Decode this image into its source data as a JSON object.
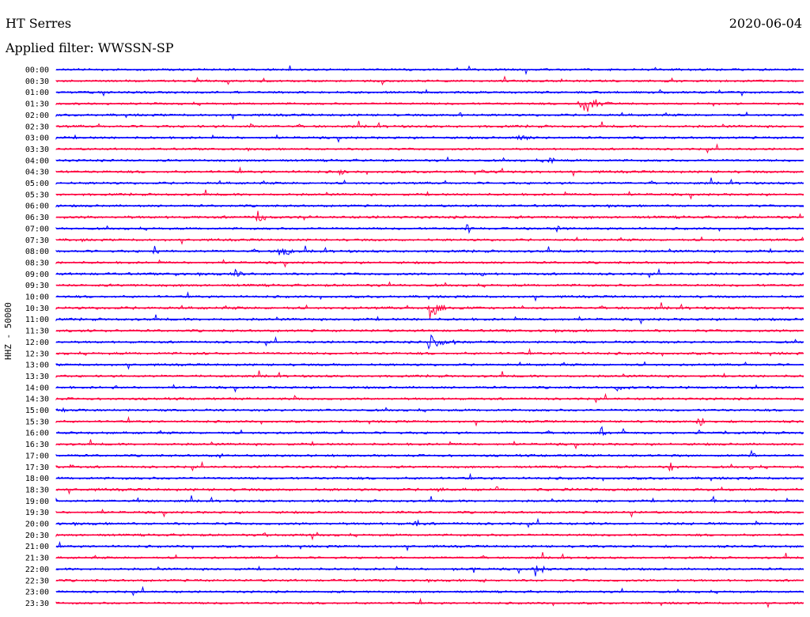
{
  "header": {
    "station": "HT Serres",
    "filter": "Applied filter: WWSSN-SP",
    "date": "2020-06-04"
  },
  "chart_data": {
    "type": "line",
    "title": "HT Serres",
    "subtitle": "Applied filter: WWSSN-SP",
    "ylabel": "HHZ - 50000",
    "xlabel": "",
    "grid": false,
    "legend": "none",
    "colors": [
      "#0000ff",
      "#ff0040"
    ],
    "rows": [
      {
        "label": "00:00",
        "color": "#0000ff",
        "activity": 0.15,
        "events": []
      },
      {
        "label": "00:30",
        "color": "#ff0040",
        "activity": 0.15,
        "events": []
      },
      {
        "label": "01:00",
        "color": "#0000ff",
        "activity": 0.15,
        "events": []
      },
      {
        "label": "01:30",
        "color": "#ff0040",
        "activity": 0.15,
        "events": [
          {
            "pos": 0.7,
            "amp": 18,
            "dur": 0.07
          }
        ]
      },
      {
        "label": "02:00",
        "color": "#0000ff",
        "activity": 0.2,
        "events": [
          {
            "pos": 0.54,
            "amp": 5,
            "dur": 0.02
          }
        ]
      },
      {
        "label": "02:30",
        "color": "#ff0040",
        "activity": 0.25,
        "events": [
          {
            "pos": 0.26,
            "amp": 4,
            "dur": 0.02
          }
        ]
      },
      {
        "label": "03:00",
        "color": "#0000ff",
        "activity": 0.2,
        "events": [
          {
            "pos": 0.62,
            "amp": 10,
            "dur": 0.03
          }
        ]
      },
      {
        "label": "03:30",
        "color": "#ff0040",
        "activity": 0.15,
        "events": []
      },
      {
        "label": "04:00",
        "color": "#0000ff",
        "activity": 0.2,
        "events": [
          {
            "pos": 0.66,
            "amp": 6,
            "dur": 0.02
          }
        ]
      },
      {
        "label": "04:30",
        "color": "#ff0040",
        "activity": 0.25,
        "events": [
          {
            "pos": 0.38,
            "amp": 5,
            "dur": 0.02
          },
          {
            "pos": 0.57,
            "amp": 4,
            "dur": 0.03
          }
        ]
      },
      {
        "label": "05:00",
        "color": "#0000ff",
        "activity": 0.2,
        "events": []
      },
      {
        "label": "05:30",
        "color": "#ff0040",
        "activity": 0.2,
        "events": []
      },
      {
        "label": "06:00",
        "color": "#0000ff",
        "activity": 0.2,
        "events": []
      },
      {
        "label": "06:30",
        "color": "#ff0040",
        "activity": 0.3,
        "events": [
          {
            "pos": 0.27,
            "amp": 12,
            "dur": 0.03
          }
        ]
      },
      {
        "label": "07:00",
        "color": "#0000ff",
        "activity": 0.2,
        "events": [
          {
            "pos": 0.55,
            "amp": 14,
            "dur": 0.02
          },
          {
            "pos": 0.67,
            "amp": 10,
            "dur": 0.02
          }
        ]
      },
      {
        "label": "07:30",
        "color": "#ff0040",
        "activity": 0.2,
        "events": [
          {
            "pos": 0.02,
            "amp": 5,
            "dur": 0.01
          }
        ]
      },
      {
        "label": "08:00",
        "color": "#0000ff",
        "activity": 0.25,
        "events": [
          {
            "pos": 0.13,
            "amp": 12,
            "dur": 0.02
          },
          {
            "pos": 0.3,
            "amp": 14,
            "dur": 0.03
          }
        ]
      },
      {
        "label": "08:30",
        "color": "#ff0040",
        "activity": 0.2,
        "events": []
      },
      {
        "label": "09:00",
        "color": "#0000ff",
        "activity": 0.25,
        "events": [
          {
            "pos": 0.16,
            "amp": 6,
            "dur": 0.01
          },
          {
            "pos": 0.24,
            "amp": 10,
            "dur": 0.02
          },
          {
            "pos": 0.57,
            "amp": 6,
            "dur": 0.01
          }
        ]
      },
      {
        "label": "09:30",
        "color": "#ff0040",
        "activity": 0.25,
        "events": []
      },
      {
        "label": "10:00",
        "color": "#0000ff",
        "activity": 0.2,
        "events": []
      },
      {
        "label": "10:30",
        "color": "#ff0040",
        "activity": 0.3,
        "events": [
          {
            "pos": 0.5,
            "amp": 16,
            "dur": 0.04
          }
        ]
      },
      {
        "label": "11:00",
        "color": "#0000ff",
        "activity": 0.25,
        "events": []
      },
      {
        "label": "11:30",
        "color": "#ff0040",
        "activity": 0.25,
        "events": [
          {
            "pos": 0.02,
            "amp": 5,
            "dur": 0.01
          }
        ]
      },
      {
        "label": "12:00",
        "color": "#0000ff",
        "activity": 0.2,
        "events": [
          {
            "pos": 0.5,
            "amp": 16,
            "dur": 0.06
          }
        ]
      },
      {
        "label": "12:30",
        "color": "#ff0040",
        "activity": 0.25,
        "events": [
          {
            "pos": 0.2,
            "amp": 4,
            "dur": 0.03
          }
        ]
      },
      {
        "label": "13:00",
        "color": "#0000ff",
        "activity": 0.2,
        "events": [
          {
            "pos": 0.37,
            "amp": 5,
            "dur": 0.01
          }
        ]
      },
      {
        "label": "13:30",
        "color": "#ff0040",
        "activity": 0.2,
        "events": [
          {
            "pos": 0.19,
            "amp": 5,
            "dur": 0.01
          }
        ]
      },
      {
        "label": "14:00",
        "color": "#0000ff",
        "activity": 0.2,
        "events": [
          {
            "pos": 0.08,
            "amp": 5,
            "dur": 0.01
          },
          {
            "pos": 0.75,
            "amp": 6,
            "dur": 0.05
          }
        ]
      },
      {
        "label": "14:30",
        "color": "#ff0040",
        "activity": 0.2,
        "events": [
          {
            "pos": 0.32,
            "amp": 7,
            "dur": 0.01
          }
        ]
      },
      {
        "label": "15:00",
        "color": "#0000ff",
        "activity": 0.2,
        "events": [
          {
            "pos": 0.01,
            "amp": 4,
            "dur": 0.02
          }
        ]
      },
      {
        "label": "15:30",
        "color": "#ff0040",
        "activity": 0.2,
        "events": [
          {
            "pos": 0.86,
            "amp": 10,
            "dur": 0.02
          }
        ]
      },
      {
        "label": "16:00",
        "color": "#0000ff",
        "activity": 0.2,
        "events": [
          {
            "pos": 0.73,
            "amp": 9,
            "dur": 0.02
          },
          {
            "pos": 0.86,
            "amp": 5,
            "dur": 0.02
          }
        ]
      },
      {
        "label": "16:30",
        "color": "#ff0040",
        "activity": 0.2,
        "events": []
      },
      {
        "label": "17:00",
        "color": "#0000ff",
        "activity": 0.2,
        "events": [
          {
            "pos": 0.22,
            "amp": 6,
            "dur": 0.01
          },
          {
            "pos": 0.93,
            "amp": 10,
            "dur": 0.02
          }
        ]
      },
      {
        "label": "17:30",
        "color": "#ff0040",
        "activity": 0.2,
        "events": [
          {
            "pos": 0.02,
            "amp": 5,
            "dur": 0.01
          },
          {
            "pos": 0.82,
            "amp": 9,
            "dur": 0.02
          },
          {
            "pos": 0.93,
            "amp": 5,
            "dur": 0.01
          }
        ]
      },
      {
        "label": "18:00",
        "color": "#0000ff",
        "activity": 0.25,
        "events": []
      },
      {
        "label": "18:30",
        "color": "#ff0040",
        "activity": 0.3,
        "events": [
          {
            "pos": 0.51,
            "amp": 5,
            "dur": 0.03
          },
          {
            "pos": 0.59,
            "amp": 7,
            "dur": 0.01
          }
        ]
      },
      {
        "label": "19:00",
        "color": "#0000ff",
        "activity": 0.2,
        "events": [
          {
            "pos": 0.11,
            "amp": 6,
            "dur": 0.01
          },
          {
            "pos": 0.36,
            "amp": 6,
            "dur": 0.01
          },
          {
            "pos": 0.88,
            "amp": 7,
            "dur": 0.01
          }
        ]
      },
      {
        "label": "19:30",
        "color": "#ff0040",
        "activity": 0.2,
        "events": [
          {
            "pos": 0.46,
            "amp": 5,
            "dur": 0.01
          },
          {
            "pos": 0.77,
            "amp": 8,
            "dur": 0.01
          }
        ]
      },
      {
        "label": "20:00",
        "color": "#0000ff",
        "activity": 0.25,
        "events": [
          {
            "pos": 0.48,
            "amp": 8,
            "dur": 0.02
          },
          {
            "pos": 0.72,
            "amp": 7,
            "dur": 0.01
          }
        ]
      },
      {
        "label": "20:30",
        "color": "#ff0040",
        "activity": 0.2,
        "events": [
          {
            "pos": 0.28,
            "amp": 8,
            "dur": 0.01
          }
        ]
      },
      {
        "label": "21:00",
        "color": "#0000ff",
        "activity": 0.2,
        "events": [
          {
            "pos": 0.72,
            "amp": 5,
            "dur": 0.01
          }
        ]
      },
      {
        "label": "21:30",
        "color": "#ff0040",
        "activity": 0.15,
        "events": []
      },
      {
        "label": "22:00",
        "color": "#0000ff",
        "activity": 0.2,
        "events": [
          {
            "pos": 0.53,
            "amp": 5,
            "dur": 0.01
          },
          {
            "pos": 0.64,
            "amp": 12,
            "dur": 0.03
          }
        ]
      },
      {
        "label": "22:30",
        "color": "#ff0040",
        "activity": 0.2,
        "events": [
          {
            "pos": 0.57,
            "amp": 5,
            "dur": 0.02
          }
        ]
      },
      {
        "label": "23:00",
        "color": "#0000ff",
        "activity": 0.15,
        "events": []
      },
      {
        "label": "23:30",
        "color": "#ff0040",
        "activity": 0.15,
        "events": []
      }
    ]
  }
}
